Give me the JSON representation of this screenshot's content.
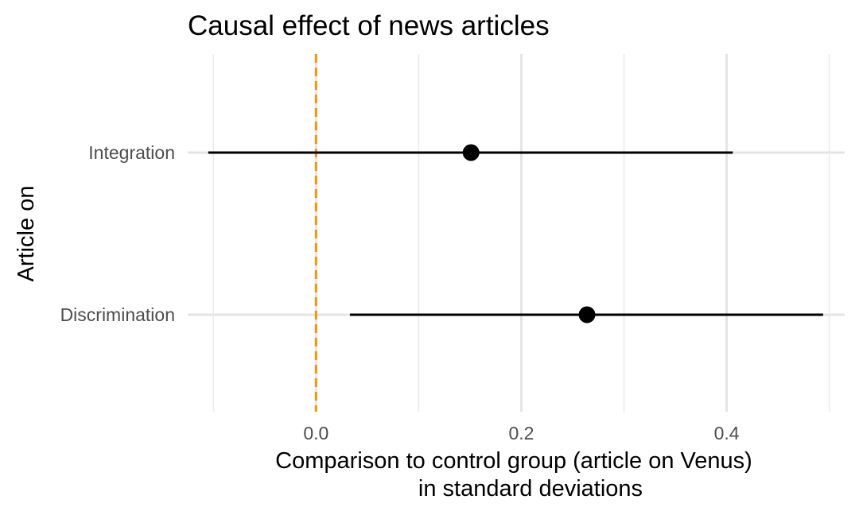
{
  "chart_data": {
    "type": "pointrange",
    "title": "Causal effect of news articles",
    "xlabel": [
      "Comparison to control group (article on Venus)",
      "in standard deviations"
    ],
    "ylabel": "Article on",
    "categories": [
      "Integration",
      "Discrimination"
    ],
    "estimates": [
      0.151,
      0.264
    ],
    "ci_low": [
      -0.105,
      0.033
    ],
    "ci_high": [
      0.406,
      0.494
    ],
    "xlim": [
      -0.125,
      0.515
    ],
    "x_ticks": [
      0.0,
      0.2,
      0.4
    ],
    "x_tick_labels": [
      "0.0",
      "0.2",
      "0.4"
    ],
    "reference_line": {
      "x": 0,
      "style": "dashed",
      "color": "#f0960f"
    },
    "grid": true,
    "legend": "none",
    "point_color": "#000000",
    "line_color": "#000000"
  }
}
